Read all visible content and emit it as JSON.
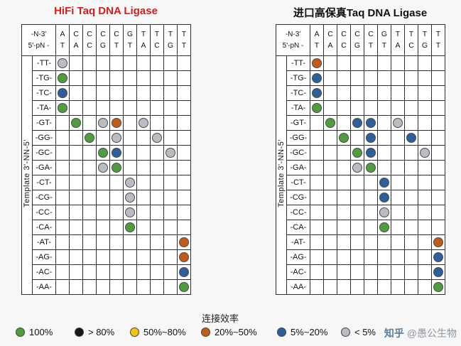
{
  "chart_data": {
    "type": "heatmap",
    "description": "Ligation efficiency dot matrix: rows are template 3'-NN-5' dinucleotides, columns are probe junction bases (-N-3' over 5'-pN-), dot color encodes ligation efficiency",
    "corner_top": "-N-3'",
    "corner_bottom": "5'-pN -",
    "side_label": "Template 3'-NN-5'",
    "columns": [
      [
        "A",
        "T"
      ],
      [
        "C",
        "A"
      ],
      [
        "C",
        "C"
      ],
      [
        "C",
        "G"
      ],
      [
        "C",
        "T"
      ],
      [
        "G",
        "T"
      ],
      [
        "T",
        "A"
      ],
      [
        "T",
        "C"
      ],
      [
        "T",
        "G"
      ],
      [
        "T",
        "T"
      ]
    ],
    "rows": [
      "-TT-",
      "-TG-",
      "-TC-",
      "-TA-",
      "-GT-",
      "-GG-",
      "-GC-",
      "-GA-",
      "-CT-",
      "-CG-",
      "-CC-",
      "-CA-",
      "-AT-",
      "-AG-",
      "-AC-",
      "-AA-"
    ],
    "panels": [
      {
        "title": "HiFi Taq DNA Ligase",
        "dots": [
          [
            0,
            0,
            "gray"
          ],
          [
            1,
            0,
            "green"
          ],
          [
            2,
            0,
            "blue"
          ],
          [
            3,
            0,
            "green"
          ],
          [
            4,
            1,
            "green"
          ],
          [
            4,
            3,
            "gray"
          ],
          [
            4,
            4,
            "orange"
          ],
          [
            4,
            6,
            "gray"
          ],
          [
            5,
            2,
            "green"
          ],
          [
            5,
            4,
            "gray"
          ],
          [
            5,
            7,
            "gray"
          ],
          [
            6,
            3,
            "green"
          ],
          [
            6,
            4,
            "blue"
          ],
          [
            6,
            8,
            "gray"
          ],
          [
            7,
            3,
            "gray"
          ],
          [
            7,
            4,
            "green"
          ],
          [
            8,
            5,
            "gray"
          ],
          [
            9,
            5,
            "gray"
          ],
          [
            10,
            5,
            "gray"
          ],
          [
            11,
            5,
            "green"
          ],
          [
            12,
            9,
            "orange"
          ],
          [
            13,
            9,
            "orange"
          ],
          [
            14,
            9,
            "blue"
          ],
          [
            15,
            9,
            "green"
          ]
        ]
      },
      {
        "title": "进口高保真Taq DNA Ligase",
        "dots": [
          [
            0,
            0,
            "orange"
          ],
          [
            1,
            0,
            "blue"
          ],
          [
            2,
            0,
            "blue"
          ],
          [
            3,
            0,
            "green"
          ],
          [
            4,
            1,
            "green"
          ],
          [
            4,
            3,
            "blue"
          ],
          [
            4,
            4,
            "blue"
          ],
          [
            4,
            6,
            "gray"
          ],
          [
            5,
            2,
            "green"
          ],
          [
            5,
            4,
            "blue"
          ],
          [
            5,
            7,
            "blue"
          ],
          [
            6,
            3,
            "green"
          ],
          [
            6,
            4,
            "blue"
          ],
          [
            6,
            8,
            "gray"
          ],
          [
            7,
            3,
            "gray"
          ],
          [
            7,
            4,
            "green"
          ],
          [
            8,
            5,
            "blue"
          ],
          [
            9,
            5,
            "blue"
          ],
          [
            10,
            5,
            "gray"
          ],
          [
            11,
            5,
            "green"
          ],
          [
            12,
            9,
            "orange"
          ],
          [
            13,
            9,
            "blue"
          ],
          [
            14,
            9,
            "blue"
          ],
          [
            15,
            9,
            "green"
          ]
        ]
      }
    ],
    "legend_title": "连接效率",
    "legend": [
      {
        "label": "100%",
        "color_key": "green"
      },
      {
        "label": "> 80%",
        "color_key": "black"
      },
      {
        "label": "50%~80%",
        "color_key": "yellow"
      },
      {
        "label": "20%~50%",
        "color_key": "orange"
      },
      {
        "label": "5%~20%",
        "color_key": "blue"
      },
      {
        "label": "< 5%",
        "color_key": "gray"
      }
    ],
    "colors": {
      "green": "#4f9d3f",
      "black": "#16161f",
      "yellow": "#f3c314",
      "orange": "#c05c1b",
      "blue": "#2d5f9b",
      "gray": "#b9bdc3",
      "title_red": "#d01f1f"
    }
  },
  "watermark": {
    "brand": "知乎",
    "handle": "@愚公生物"
  }
}
